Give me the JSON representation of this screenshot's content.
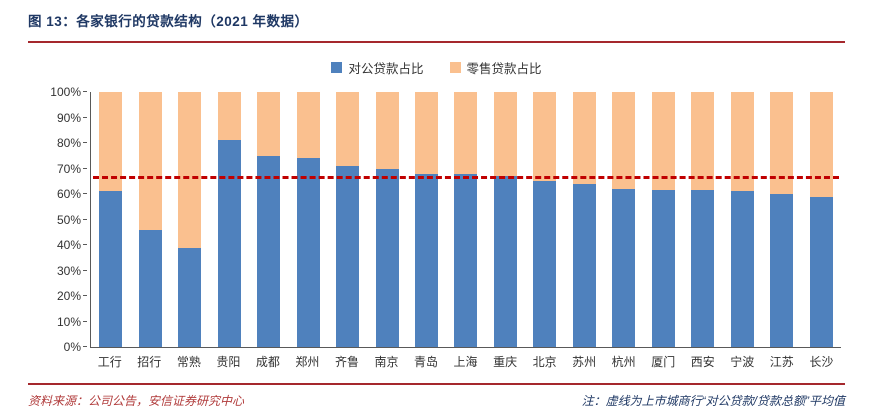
{
  "header": {
    "title": "图 13：各家银行的贷款结构（2021 年数据）"
  },
  "legend": [
    {
      "label": "对公贷款占比",
      "color": "#4f81bd"
    },
    {
      "label": "零售贷款占比",
      "color": "#fac08f"
    }
  ],
  "colors": {
    "rule_red": "#a5282d",
    "title_navy": "#1f3864",
    "dashed_line_red": "#c00000",
    "corporate_blue": "#4f81bd",
    "retail_orange": "#fac08f"
  },
  "chart_data": {
    "type": "bar",
    "stacked": true,
    "title": "各家银行的贷款结构（2021 年数据）",
    "categories": [
      "工行",
      "招行",
      "常熟",
      "贵阳",
      "成都",
      "郑州",
      "齐鲁",
      "南京",
      "青岛",
      "上海",
      "重庆",
      "北京",
      "苏州",
      "杭州",
      "厦门",
      "西安",
      "宁波",
      "江苏",
      "长沙"
    ],
    "series": [
      {
        "name": "对公贷款占比",
        "color": "#4f81bd",
        "values": [
          61,
          46,
          39,
          81,
          75,
          74,
          71,
          70,
          68,
          68,
          67,
          65,
          64,
          62,
          61.5,
          61.5,
          61,
          60,
          59
        ]
      },
      {
        "name": "零售贷款占比",
        "color": "#fac08f",
        "values": [
          39,
          54,
          61,
          19,
          25,
          26,
          29,
          30,
          32,
          32,
          33,
          35,
          36,
          38,
          38.5,
          38.5,
          39,
          40,
          41
        ]
      }
    ],
    "reference_line": {
      "value": 66,
      "color": "#c00000",
      "style": "dashed",
      "meaning": "上市城商行“对公贷款/贷款总额”平均值"
    },
    "ylim": [
      0,
      100
    ],
    "ytick_labels": [
      "0%",
      "10%",
      "20%",
      "30%",
      "40%",
      "50%",
      "60%",
      "70%",
      "80%",
      "90%",
      "100%"
    ],
    "legend_position": "top",
    "grid": false
  },
  "footer": {
    "source": "资料来源：公司公告，安信证券研究中心",
    "note": "注：虚线为上市城商行“对公贷款/贷款总额”平均值"
  }
}
